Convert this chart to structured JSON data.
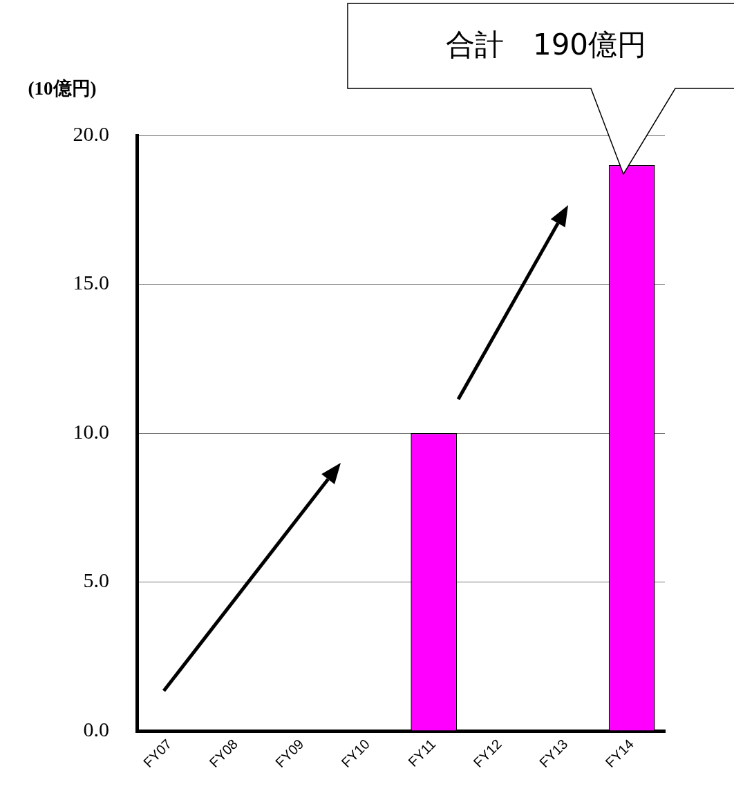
{
  "chart_data": {
    "type": "bar",
    "ylabel": "(10億円)",
    "categories": [
      "FY07",
      "FY08",
      "FY09",
      "FY10",
      "FY11",
      "FY12",
      "FY13",
      "FY14"
    ],
    "values": [
      null,
      null,
      null,
      null,
      10.0,
      null,
      null,
      19.0
    ],
    "color": "#ff00ff",
    "ylim": [
      0,
      20
    ],
    "yticks": [
      {
        "value": 0,
        "label": "0.0"
      },
      {
        "value": 5,
        "label": "5.0"
      },
      {
        "value": 10,
        "label": "10.0"
      },
      {
        "value": 15,
        "label": "15.0"
      },
      {
        "value": 20,
        "label": "20.0"
      }
    ],
    "grid": "y",
    "legend": false,
    "annotations": [
      "合計　190億円"
    ]
  }
}
